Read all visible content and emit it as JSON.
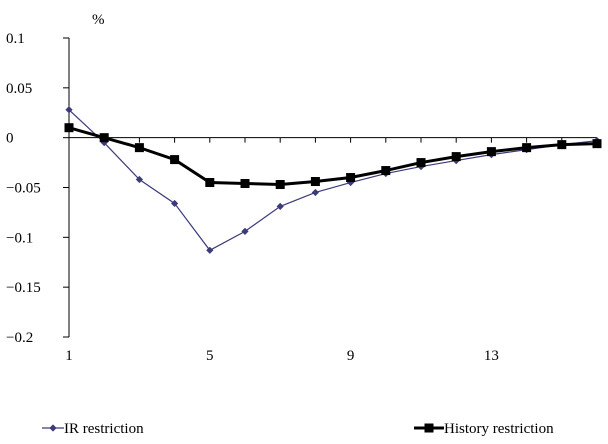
{
  "chart_data": {
    "type": "line",
    "unit_label": "%",
    "x": [
      1,
      2,
      3,
      4,
      5,
      6,
      7,
      8,
      9,
      10,
      11,
      12,
      13,
      14,
      15,
      16
    ],
    "x_ticks": [
      1,
      5,
      9,
      13
    ],
    "x_tick_labels": [
      "1",
      "5",
      "9",
      "13"
    ],
    "xlim": [
      1,
      16
    ],
    "ylim": [
      -0.2,
      0.1
    ],
    "y_ticks": [
      0.1,
      0.05,
      0,
      -0.05,
      -0.1,
      -0.15,
      -0.2
    ],
    "y_tick_labels": [
      "0.1",
      "0.05",
      "0",
      "−0.05",
      "−0.1",
      "−0.15",
      "−0.2"
    ],
    "grid": false,
    "legend_position": "bottom",
    "series": [
      {
        "name": "IR restriction",
        "color": "#3b3b7a",
        "marker": "diamond",
        "values": [
          0.028,
          -0.005,
          -0.042,
          -0.066,
          -0.113,
          -0.094,
          -0.069,
          -0.055,
          -0.045,
          -0.036,
          -0.029,
          -0.023,
          -0.017,
          -0.012,
          -0.007,
          -0.003
        ]
      },
      {
        "name": "History restriction",
        "color": "#000000",
        "marker": "square",
        "values": [
          0.01,
          0.0,
          -0.01,
          -0.022,
          -0.045,
          -0.046,
          -0.047,
          -0.044,
          -0.04,
          -0.033,
          -0.025,
          -0.019,
          -0.014,
          -0.01,
          -0.007,
          -0.006
        ]
      }
    ]
  }
}
